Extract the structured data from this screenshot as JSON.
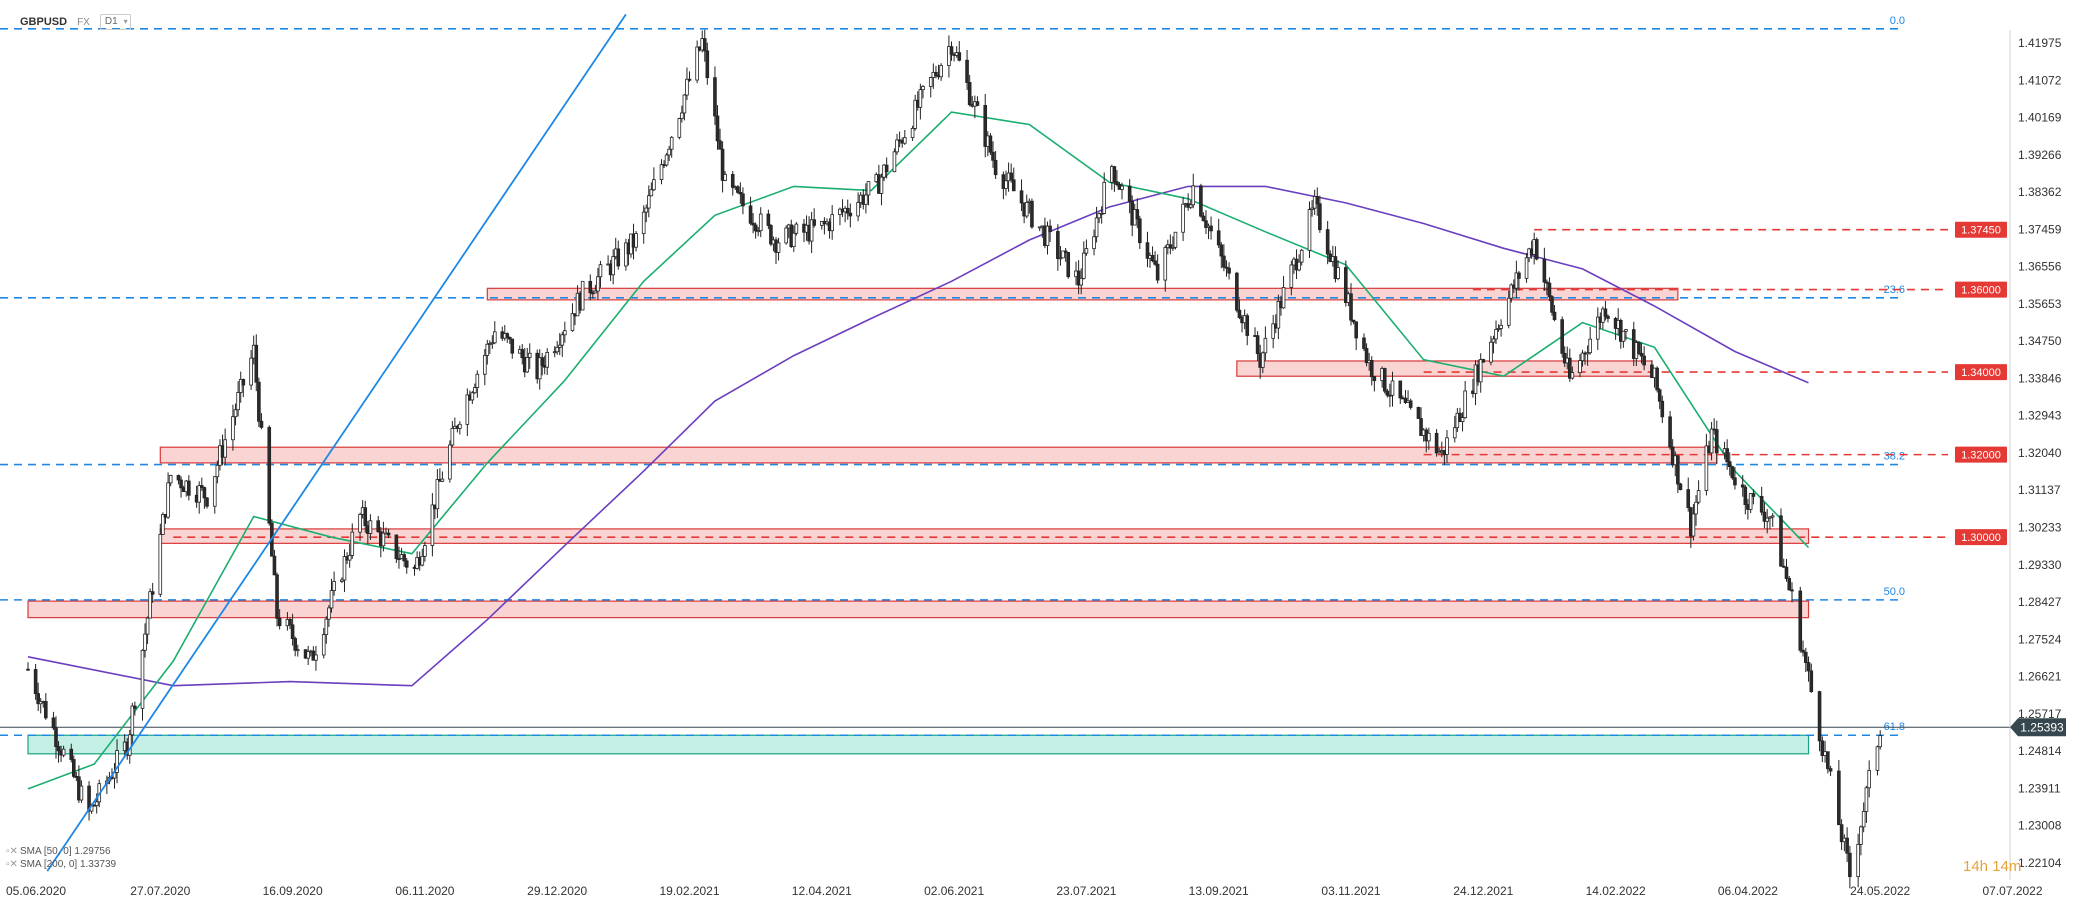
{
  "header": {
    "symbol": "GBPUSD",
    "market": "FX",
    "timeframe": "D1"
  },
  "legend": [
    {
      "label": "SMA [50, 0] 1.29756"
    },
    {
      "label": "SMA [200, 0] 1.33739"
    }
  ],
  "countdown": "14h 14m",
  "colors": {
    "up": "#ffffff",
    "down": "#2b2b2b",
    "sma50": "#1aae6f",
    "sma200": "#6a3fbf",
    "trendline": "#1e88e5",
    "resistance": "#e53935",
    "fib": "#1e88e5",
    "support_zone": "#26c6a0",
    "price_tag": "#37474f"
  },
  "chart_data": {
    "type": "candlestick",
    "x_ticks": [
      "05.06.2020",
      "27.07.2020",
      "16.09.2020",
      "06.11.2020",
      "29.12.2020",
      "19.02.2021",
      "12.04.2021",
      "02.06.2021",
      "23.07.2021",
      "13.09.2021",
      "03.11.2021",
      "24.12.2021",
      "14.02.2022",
      "06.04.2022",
      "24.05.2022",
      "07.07.2022"
    ],
    "y_ticks": [
      "1.41975",
      "1.41072",
      "1.40169",
      "1.39266",
      "1.38362",
      "1.37459",
      "1.36556",
      "1.35653",
      "1.34750",
      "1.33846",
      "1.32943",
      "1.32040",
      "1.31137",
      "1.30233",
      "1.29330",
      "1.28427",
      "1.27524",
      "1.26621",
      "1.25717",
      "1.24814",
      "1.23911",
      "1.23008",
      "1.22104"
    ],
    "ylim": [
      1.2205,
      1.4273
    ],
    "current_price": "1.25393",
    "horizontal_levels": [
      {
        "value": 1.3745,
        "label": "1.37450",
        "style": "red-dashed"
      },
      {
        "value": 1.36,
        "label": "1.36000",
        "style": "red-dashed"
      },
      {
        "value": 1.34,
        "label": "1.34000",
        "style": "red-dashed"
      },
      {
        "value": 1.32,
        "label": "1.32000",
        "style": "red-dashed"
      },
      {
        "value": 1.3,
        "label": "1.30000",
        "style": "red-dashed"
      }
    ],
    "fib_levels": [
      {
        "value": 1.4232,
        "label": "0.0"
      },
      {
        "value": 1.358,
        "label": "23.6"
      },
      {
        "value": 1.3176,
        "label": "38.2"
      },
      {
        "value": 1.2848,
        "label": "50.0"
      },
      {
        "value": 1.252,
        "label": "61.8"
      }
    ],
    "zones": [
      {
        "low": 1.3575,
        "high": 1.3603,
        "start": "2020-12-01",
        "end": "2022-03-10",
        "color": "red"
      },
      {
        "low": 1.339,
        "high": 1.3427,
        "start": "2021-09-20",
        "end": "2022-02-28",
        "color": "red"
      },
      {
        "low": 1.318,
        "high": 1.3218,
        "start": "2020-07-27",
        "end": "2022-03-25",
        "color": "red"
      },
      {
        "low": 1.2985,
        "high": 1.302,
        "start": "2020-07-27",
        "end": "2022-04-28",
        "color": "red"
      },
      {
        "low": 1.2805,
        "high": 1.2845,
        "start": "2020-06-05",
        "end": "2022-04-28",
        "color": "red"
      },
      {
        "low": 1.2475,
        "high": 1.252,
        "start": "2020-06-05",
        "end": "2022-04-28",
        "color": "green"
      }
    ],
    "trendline": [
      {
        "date": "2020-06-22",
        "value": 1.2215
      },
      {
        "date": "2021-01-25",
        "value": 1.4267
      }
    ],
    "anchors": [
      [
        "2020-06-05",
        1.268
      ],
      [
        "2020-06-29",
        1.233
      ],
      [
        "2020-07-14",
        1.25
      ],
      [
        "2020-07-31",
        1.315
      ],
      [
        "2020-08-14",
        1.31
      ],
      [
        "2020-09-01",
        1.345
      ],
      [
        "2020-09-10",
        1.281
      ],
      [
        "2020-09-23",
        1.27
      ],
      [
        "2020-10-12",
        1.305
      ],
      [
        "2020-11-02",
        1.292
      ],
      [
        "2020-11-20",
        1.33
      ],
      [
        "2020-12-04",
        1.35
      ],
      [
        "2020-12-21",
        1.34
      ],
      [
        "2021-01-08",
        1.359
      ],
      [
        "2021-01-29",
        1.372
      ],
      [
        "2021-02-24",
        1.42
      ],
      [
        "2021-03-05",
        1.385
      ],
      [
        "2021-03-25",
        1.372
      ],
      [
        "2021-04-12",
        1.375
      ],
      [
        "2021-05-03",
        1.385
      ],
      [
        "2021-06-01",
        1.42
      ],
      [
        "2021-06-18",
        1.39
      ],
      [
        "2021-07-20",
        1.362
      ],
      [
        "2021-08-02",
        1.39
      ],
      [
        "2021-08-20",
        1.363
      ],
      [
        "2021-09-03",
        1.385
      ],
      [
        "2021-09-29",
        1.343
      ],
      [
        "2021-10-20",
        1.38
      ],
      [
        "2021-11-10",
        1.342
      ],
      [
        "2021-12-08",
        1.32
      ],
      [
        "2021-12-27",
        1.348
      ],
      [
        "2022-01-13",
        1.372
      ],
      [
        "2022-01-27",
        1.338
      ],
      [
        "2022-02-10",
        1.356
      ],
      [
        "2022-03-01",
        1.338
      ],
      [
        "2022-03-15",
        1.303
      ],
      [
        "2022-03-23",
        1.325
      ],
      [
        "2022-04-05",
        1.31
      ],
      [
        "2022-04-14",
        1.305
      ],
      [
        "2022-04-22",
        1.285
      ],
      [
        "2022-05-13",
        1.218
      ],
      [
        "2022-05-24",
        1.2539
      ]
    ],
    "sma50": [
      [
        "2020-06-05",
        1.239
      ],
      [
        "2020-07-01",
        1.245
      ],
      [
        "2020-08-01",
        1.27
      ],
      [
        "2020-09-01",
        1.305
      ],
      [
        "2020-10-01",
        1.3
      ],
      [
        "2020-11-01",
        1.296
      ],
      [
        "2020-12-01",
        1.318
      ],
      [
        "2021-01-01",
        1.338
      ],
      [
        "2021-02-01",
        1.362
      ],
      [
        "2021-03-01",
        1.378
      ],
      [
        "2021-04-01",
        1.385
      ],
      [
        "2021-05-01",
        1.384
      ],
      [
        "2021-06-01",
        1.403
      ],
      [
        "2021-07-01",
        1.4
      ],
      [
        "2021-08-01",
        1.386
      ],
      [
        "2021-09-01",
        1.382
      ],
      [
        "2021-10-01",
        1.374
      ],
      [
        "2021-11-01",
        1.366
      ],
      [
        "2021-12-01",
        1.343
      ],
      [
        "2022-01-01",
        1.339
      ],
      [
        "2022-02-01",
        1.352
      ],
      [
        "2022-03-01",
        1.346
      ],
      [
        "2022-04-01",
        1.316
      ],
      [
        "2022-04-28",
        1.2975
      ]
    ],
    "sma200": [
      [
        "2020-06-05",
        1.271
      ],
      [
        "2020-08-01",
        1.264
      ],
      [
        "2020-09-15",
        1.265
      ],
      [
        "2020-11-01",
        1.264
      ],
      [
        "2020-12-01",
        1.28
      ],
      [
        "2021-01-01",
        1.298
      ],
      [
        "2021-02-01",
        1.316
      ],
      [
        "2021-03-01",
        1.333
      ],
      [
        "2021-04-01",
        1.344
      ],
      [
        "2021-05-01",
        1.353
      ],
      [
        "2021-06-01",
        1.362
      ],
      [
        "2021-07-01",
        1.372
      ],
      [
        "2021-08-01",
        1.38
      ],
      [
        "2021-09-01",
        1.385
      ],
      [
        "2021-10-01",
        1.385
      ],
      [
        "2021-11-01",
        1.381
      ],
      [
        "2021-12-01",
        1.376
      ],
      [
        "2022-01-01",
        1.37
      ],
      [
        "2022-02-01",
        1.365
      ],
      [
        "2022-03-01",
        1.356
      ],
      [
        "2022-04-01",
        1.345
      ],
      [
        "2022-04-28",
        1.3374
      ]
    ]
  }
}
